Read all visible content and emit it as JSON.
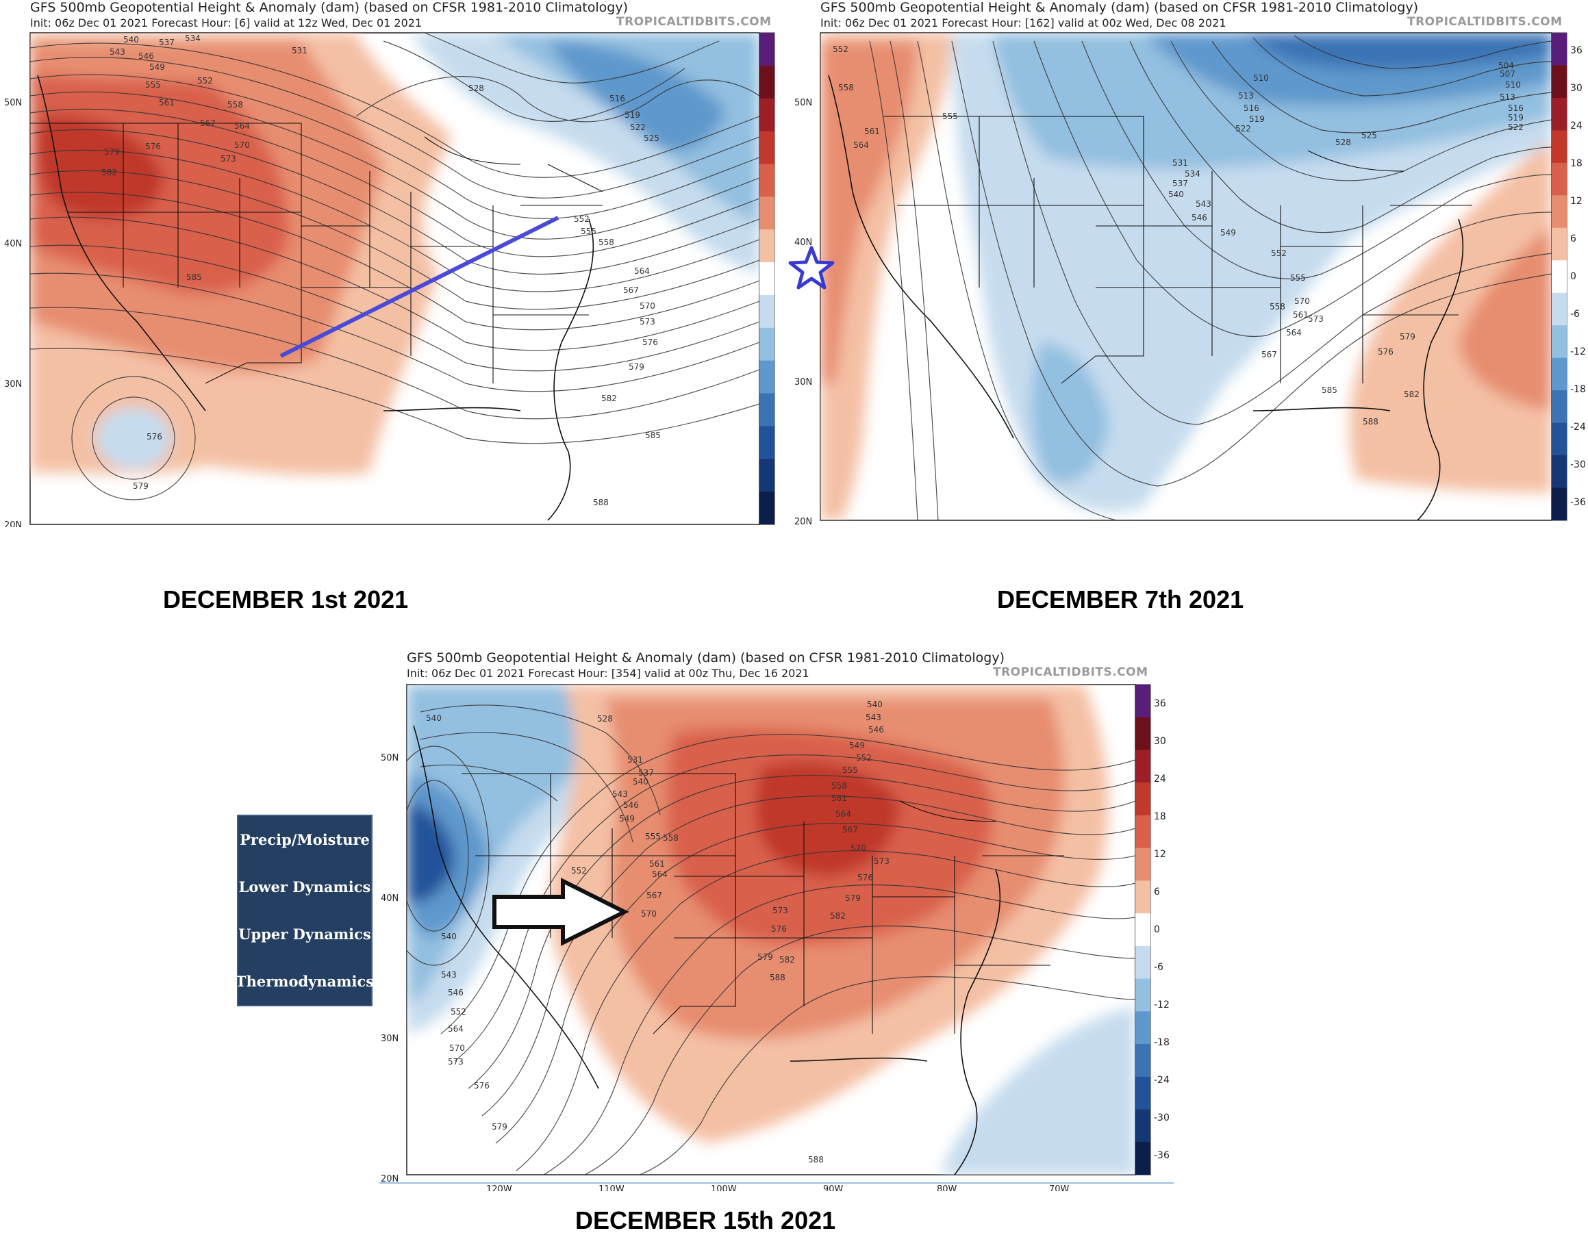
{
  "panels": [
    {
      "title": "GFS 500mb Geopotential Height & Anomaly (dam) (based on CFSR 1981-2010 Climatology)",
      "subtitle": "Init: 06z Dec 01 2021   Forecast Hour: [6]   valid at 12z Wed, Dec 01 2021",
      "brand": "TROPICALTIDBITS.COM",
      "date_label": "DECEMBER 1st 2021"
    },
    {
      "title": "GFS 500mb Geopotential Height & Anomaly (dam) (based on CFSR 1981-2010 Climatology)",
      "subtitle": "Init: 06z Dec 01 2021   Forecast Hour: [162]   valid at 00z Wed, Dec 08 2021",
      "brand": "TROPICALTIDBITS.COM",
      "date_label": "DECEMBER 7th 2021"
    },
    {
      "title": "GFS 500mb Geopotential Height & Anomaly (dam) (based on CFSR 1981-2010 Climatology)",
      "subtitle": "Init: 06z Dec 01 2021   Forecast Hour: [354]   valid at 00z Thu, Dec 16 2021",
      "brand": "TROPICALTIDBITS.COM",
      "date_label": "DECEMBER 15th 2021"
    }
  ],
  "lat_labels": [
    "50N",
    "40N",
    "30N",
    "20N"
  ],
  "lon_labels": [
    "120W",
    "110W",
    "100W",
    "90W",
    "80W",
    "70W"
  ],
  "colorbar_labels": [
    "36",
    "30",
    "24",
    "18",
    "12",
    "6",
    "0",
    "-6",
    "-12",
    "-18",
    "-24",
    "-30",
    "-36"
  ],
  "colorbar_colors": [
    "#5a1e7a",
    "#6e0f1c",
    "#9c1f27",
    "#c0392b",
    "#d9604b",
    "#e78d70",
    "#f4c0a4",
    "#ffffff",
    "#c6dcee",
    "#93bfe0",
    "#5f98cc",
    "#3b73b5",
    "#22529a",
    "#143876",
    "#0b1f4a"
  ],
  "contour_labels": {
    "panel1": [
      "540",
      "537",
      "534",
      "531",
      "543",
      "546",
      "549",
      "552",
      "555",
      "558",
      "561",
      "564",
      "567",
      "570",
      "573",
      "576",
      "579",
      "582",
      "585",
      "528",
      "516",
      "519",
      "522",
      "525",
      "552",
      "555",
      "558",
      "564",
      "567",
      "570",
      "573",
      "576",
      "579",
      "582",
      "585",
      "588",
      "576",
      "579"
    ],
    "panel2": [
      "552",
      "558",
      "561",
      "564",
      "555",
      "510",
      "513",
      "516",
      "519",
      "522",
      "525",
      "528",
      "531",
      "534",
      "537",
      "540",
      "543",
      "546",
      "549",
      "552",
      "555",
      "558",
      "561",
      "564",
      "567",
      "570",
      "573",
      "576",
      "579",
      "582",
      "585",
      "588",
      "504",
      "507",
      "510",
      "513",
      "516",
      "519",
      "522"
    ],
    "panel3": [
      "540",
      "528",
      "531",
      "537",
      "540",
      "543",
      "546",
      "549",
      "552",
      "555",
      "558",
      "561",
      "564",
      "567",
      "570",
      "573",
      "576",
      "579",
      "582",
      "588",
      "540",
      "543",
      "546",
      "549",
      "552",
      "555",
      "558",
      "561",
      "564",
      "567",
      "570",
      "573",
      "576",
      "579",
      "582",
      "588",
      "543",
      "540",
      "546",
      "552",
      "564",
      "570",
      "573",
      "576",
      "579"
    ]
  },
  "annotations": {
    "legend_items": [
      "Precip/Moisture",
      "Lower Dynamics",
      "Upper Dynamics",
      "Thermodynamics"
    ]
  },
  "colors": {
    "line_annotation": "#4a4ad8",
    "star_annotation": "#3a3ad0",
    "arrow_annotation": "#111111",
    "legend_background": "#243f61",
    "warm_anomaly": "#d9604b",
    "cold_anomaly": "#3b73b5"
  }
}
